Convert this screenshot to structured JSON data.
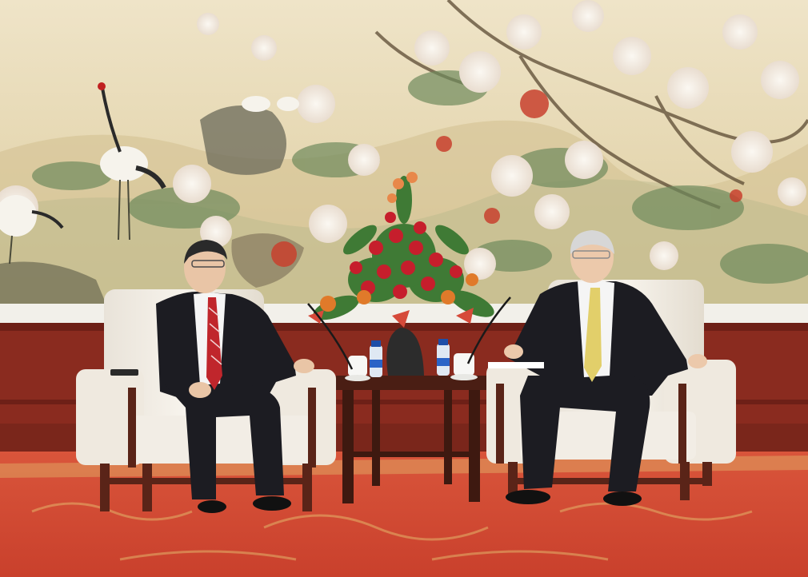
{
  "scene": {
    "description_labels": [],
    "colors": {
      "mural_bg": "#e6d6ad",
      "mural_sky": "#efe4c8",
      "blossom": "#f4eee6",
      "foliage": "#6f8a5c",
      "peony_red": "#c8412e",
      "wall_band": "#f2f0ea",
      "wainscot": "#8a2b1f",
      "carpet": "#d24a33",
      "carpet_pattern": "#e3b46a",
      "armchair": "#f1ece4",
      "chair_frame": "#5a2418",
      "suit": "#1c1c22",
      "shirt": "#f5f5f5",
      "tie_red": "#c0262c",
      "tie_gold": "#e2cf6a",
      "skin": "#e9c5a6",
      "table": "#4a1e14",
      "bouquet_red": "#c61e2c",
      "bouquet_green": "#3f7a35"
    },
    "icons": [
      "crane-icon",
      "flower-arrangement-icon",
      "water-bottle-icon",
      "teacup-icon",
      "microphone-icon"
    ]
  }
}
